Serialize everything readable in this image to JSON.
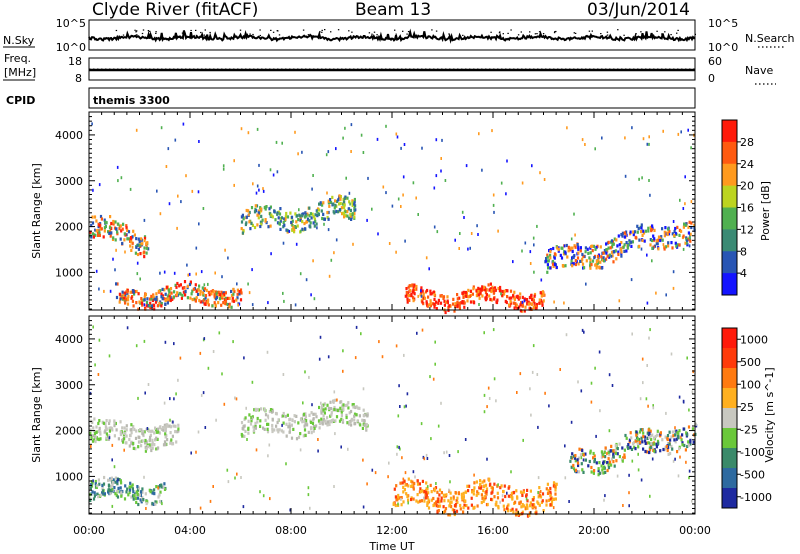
{
  "header": {
    "station": "Clyde River (fitACF)",
    "beam": "Beam 13",
    "date": "03/Jun/2014"
  },
  "noise_panel": {
    "left_label": "N.Sky",
    "right_label": "N.Search",
    "left_ticks": [
      "10^5",
      "10^0"
    ],
    "right_ticks": [
      "10^5",
      "10^0"
    ]
  },
  "freq_panel": {
    "left_label_1": "Freq.",
    "left_label_2": "[MHz]",
    "right_label": "Nave",
    "left_ticks": [
      "18",
      "8"
    ],
    "right_ticks": [
      "60",
      "0"
    ]
  },
  "cpid_panel": {
    "left_label": "CPID",
    "value": "themis 3300"
  },
  "chart_data": [
    {
      "type": "heatmap",
      "name": "power",
      "ylabel": "Slant Range [km]",
      "xlabel": "Time UT",
      "x_ticks": [
        "00:00",
        "04:00",
        "08:00",
        "12:00",
        "16:00",
        "20:00",
        "00:00"
      ],
      "x_range_hours": [
        0,
        24
      ],
      "y_ticks": [
        1000,
        2000,
        3000,
        4000
      ],
      "ylim": [
        180,
        4500
      ],
      "colorbar": {
        "label": "Power [dB]",
        "tick_labels": [
          "4",
          "8",
          "12",
          "16",
          "20",
          "24",
          "28"
        ],
        "colors": [
          "#1414ff",
          "#2855b4",
          "#3a8a74",
          "#50b050",
          "#bcd420",
          "#ff9a1e",
          "#ff5a10",
          "#ff1a0a"
        ]
      },
      "features": [
        {
          "start": 0.0,
          "end": 2.3,
          "center": [
            2000,
            1700
          ],
          "width": 300,
          "dominant": "orange-red"
        },
        {
          "start": 1.0,
          "end": 6.0,
          "center": [
            500,
            550
          ],
          "width": 240,
          "dominant": "orange-red"
        },
        {
          "start": 6.0,
          "end": 10.5,
          "center": [
            2100,
            2400
          ],
          "width": 300,
          "dominant": "green"
        },
        {
          "start": 12.5,
          "end": 18.0,
          "center": [
            450,
            500
          ],
          "width": 240,
          "dominant": "red"
        },
        {
          "start": 18.0,
          "end": 24.0,
          "center": [
            1200,
            2000
          ],
          "width": 320,
          "dominant": "green-orange"
        }
      ]
    },
    {
      "type": "heatmap",
      "name": "velocity",
      "ylabel": "Slant Range [km]",
      "xlabel": "Time UT",
      "x_ticks": [
        "00:00",
        "04:00",
        "08:00",
        "12:00",
        "16:00",
        "20:00",
        "00:00"
      ],
      "x_range_hours": [
        0,
        24
      ],
      "y_ticks": [
        1000,
        2000,
        3000,
        4000
      ],
      "ylim": [
        180,
        4500
      ],
      "colorbar": {
        "label": "Velocity [m s^-1]",
        "tick_labels": [
          "1000",
          "500",
          "100",
          "25",
          "-25",
          "-100",
          "-500",
          "-1000"
        ],
        "colors": [
          "#1e2aa0",
          "#2e6aa0",
          "#3a8a6a",
          "#6ac83a",
          "#c8c8c0",
          "#ffb020",
          "#ff7a10",
          "#ff3a0a",
          "#ff1a0a"
        ]
      },
      "features": [
        {
          "start": 0.0,
          "end": 3.5,
          "center": [
            2000,
            1900
          ],
          "width": 320,
          "dominant": "gray"
        },
        {
          "start": 0.0,
          "end": 3.0,
          "center": [
            700,
            700
          ],
          "width": 260,
          "dominant": "green"
        },
        {
          "start": 6.0,
          "end": 11.0,
          "center": [
            2100,
            2400
          ],
          "width": 320,
          "dominant": "gray"
        },
        {
          "start": 12.0,
          "end": 18.5,
          "center": [
            600,
            550
          ],
          "width": 360,
          "dominant": "orange"
        },
        {
          "start": 19.0,
          "end": 24.0,
          "center": [
            1300,
            2000
          ],
          "width": 340,
          "dominant": "orange-green"
        }
      ]
    }
  ]
}
